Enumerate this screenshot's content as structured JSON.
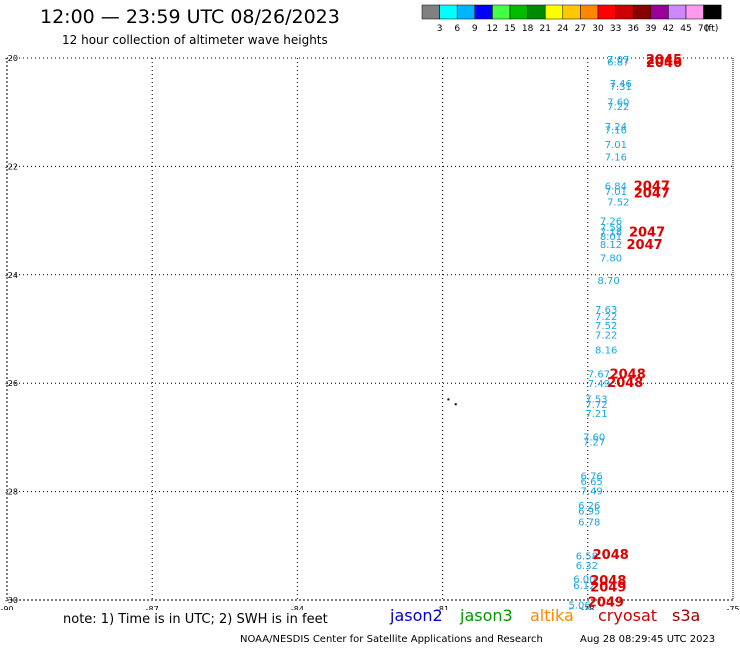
{
  "title": "12:00 — 23:59 UTC 08/26/2023",
  "subtitle": "12 hour collection of altimeter wave heights",
  "legend": {
    "colors": [
      "#808080",
      "#00ffff",
      "#00b4ff",
      "#0000ff",
      "#44ff44",
      "#00bb00",
      "#008800",
      "#ffff00",
      "#ffc800",
      "#ff8800",
      "#ff0000",
      "#cc0000",
      "#880000",
      "#990099",
      "#cc88ff",
      "#ff99ee",
      "#000000"
    ],
    "labels": [
      "3",
      "6",
      "9",
      "12",
      "15",
      "18",
      "21",
      "24",
      "27",
      "30",
      "33",
      "36",
      "39",
      "42",
      "45",
      "70",
      "(ft)"
    ]
  },
  "chart_data": {
    "type": "scatter",
    "x_ticks": [
      "-90",
      "-87",
      "-84",
      "-81",
      "-78",
      "-75"
    ],
    "y_ticks": [
      "-20",
      "-22",
      "-24",
      "-26",
      "-28",
      "-30"
    ],
    "xlim": [
      -90,
      -75
    ],
    "ylim": [
      -30,
      -20
    ],
    "grid": true,
    "wave_heights_jason3_ft": [
      {
        "lon": -77.6,
        "lat": -20.02,
        "v": "7.07"
      },
      {
        "lon": -77.6,
        "lat": -20.06,
        "v": "6.87"
      },
      {
        "lon": -77.55,
        "lat": -20.46,
        "v": "7.46"
      },
      {
        "lon": -77.55,
        "lat": -20.52,
        "v": "7.31"
      },
      {
        "lon": -77.6,
        "lat": -20.8,
        "v": "7.60"
      },
      {
        "lon": -77.6,
        "lat": -20.89,
        "v": "7.22"
      },
      {
        "lon": -77.65,
        "lat": -21.25,
        "v": "7.24"
      },
      {
        "lon": -77.65,
        "lat": -21.32,
        "v": "7.16"
      },
      {
        "lon": -77.65,
        "lat": -21.59,
        "v": "7.01"
      },
      {
        "lon": -77.65,
        "lat": -21.82,
        "v": "7.16"
      },
      {
        "lon": -77.65,
        "lat": -22.35,
        "v": "6.84"
      },
      {
        "lon": -77.65,
        "lat": -22.45,
        "v": "7.01"
      },
      {
        "lon": -77.6,
        "lat": -22.65,
        "v": "7.52"
      },
      {
        "lon": -77.75,
        "lat": -23.0,
        "v": "7.26"
      },
      {
        "lon": -77.75,
        "lat": -23.12,
        "v": "7.59"
      },
      {
        "lon": -77.75,
        "lat": -23.2,
        "v": "7.18"
      },
      {
        "lon": -77.75,
        "lat": -23.28,
        "v": "8.01"
      },
      {
        "lon": -77.75,
        "lat": -23.43,
        "v": "8.12"
      },
      {
        "lon": -77.75,
        "lat": -23.68,
        "v": "7.80"
      },
      {
        "lon": -77.8,
        "lat": -24.1,
        "v": "8.70"
      },
      {
        "lon": -77.85,
        "lat": -24.63,
        "v": "7.63"
      },
      {
        "lon": -77.85,
        "lat": -24.76,
        "v": "7.22"
      },
      {
        "lon": -77.85,
        "lat": -24.93,
        "v": "7.52"
      },
      {
        "lon": -77.85,
        "lat": -25.1,
        "v": "7.22"
      },
      {
        "lon": -77.85,
        "lat": -25.38,
        "v": "8.16"
      },
      {
        "lon": -78.0,
        "lat": -25.82,
        "v": "7.67"
      },
      {
        "lon": -78.0,
        "lat": -26.0,
        "v": "7.49"
      },
      {
        "lon": -78.05,
        "lat": -26.28,
        "v": "7.53"
      },
      {
        "lon": -78.05,
        "lat": -26.38,
        "v": "7.72"
      },
      {
        "lon": -78.05,
        "lat": -26.55,
        "v": "7.21"
      },
      {
        "lon": -78.1,
        "lat": -26.98,
        "v": "7.60"
      },
      {
        "lon": -78.1,
        "lat": -27.08,
        "v": "7.27"
      },
      {
        "lon": -78.15,
        "lat": -27.7,
        "v": "6.76"
      },
      {
        "lon": -78.15,
        "lat": -27.8,
        "v": "6.65"
      },
      {
        "lon": -78.15,
        "lat": -27.98,
        "v": "7.49"
      },
      {
        "lon": -78.2,
        "lat": -28.25,
        "v": "6.26"
      },
      {
        "lon": -78.2,
        "lat": -28.35,
        "v": "6.95"
      },
      {
        "lon": -78.2,
        "lat": -28.55,
        "v": "6.78"
      },
      {
        "lon": -78.25,
        "lat": -29.18,
        "v": "6.58"
      },
      {
        "lon": -78.25,
        "lat": -29.35,
        "v": "6.32"
      },
      {
        "lon": -78.3,
        "lat": -29.6,
        "v": "6.00"
      },
      {
        "lon": -78.3,
        "lat": -29.72,
        "v": "6.12"
      },
      {
        "lon": -78.4,
        "lat": -30.08,
        "v": "5.06"
      },
      {
        "lon": -78.4,
        "lat": -30.2,
        "v": "5.30"
      }
    ],
    "time_labels": [
      {
        "lon": -76.8,
        "lat": -20.02,
        "v": "2045"
      },
      {
        "lon": -76.8,
        "lat": -20.07,
        "v": "2046"
      },
      {
        "lon": -77.05,
        "lat": -22.35,
        "v": "2047"
      },
      {
        "lon": -77.05,
        "lat": -22.48,
        "v": "2047"
      },
      {
        "lon": -77.15,
        "lat": -23.2,
        "v": "2047"
      },
      {
        "lon": -77.2,
        "lat": -23.43,
        "v": "2047"
      },
      {
        "lon": -77.55,
        "lat": -25.82,
        "v": "2048"
      },
      {
        "lon": -77.6,
        "lat": -25.98,
        "v": "2048"
      },
      {
        "lon": -77.9,
        "lat": -29.15,
        "v": "2048"
      },
      {
        "lon": -77.95,
        "lat": -29.63,
        "v": "2048"
      },
      {
        "lon": -77.95,
        "lat": -29.75,
        "v": "2049"
      },
      {
        "lon": -78.0,
        "lat": -30.03,
        "v": "2049"
      }
    ],
    "land_points": [
      {
        "lon": -80.9,
        "lat": -26.28
      },
      {
        "lon": -80.75,
        "lat": -26.37
      }
    ],
    "colors": {
      "jason3_ft": "#1aa6de",
      "time": "#e00000",
      "grid": "#000000"
    }
  },
  "note": "note: 1) Time is in UTC; 2) SWH is in feet",
  "satellites": [
    {
      "name": "jason2",
      "color": "#0000cc"
    },
    {
      "name": "jason3",
      "color": "#009900"
    },
    {
      "name": "altika",
      "color": "#ff8800"
    },
    {
      "name": "cryosat",
      "color": "#cc0000"
    },
    {
      "name": "s3a",
      "color": "#990000"
    }
  ],
  "footer_left": "NOAA/NESDIS Center for Satellite Applications and Research",
  "footer_right": "Aug 28 08:29:45 UTC 2023"
}
